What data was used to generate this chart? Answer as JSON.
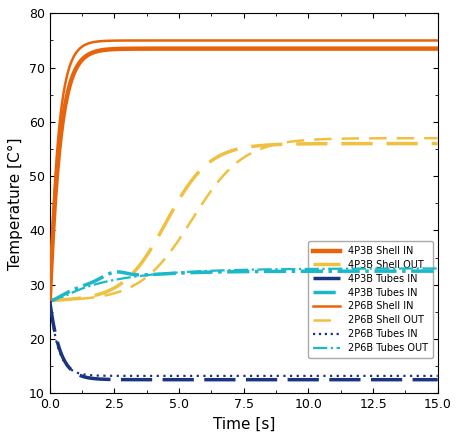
{
  "xlabel": "Time [s]",
  "ylabel": "Temperature [C°]",
  "xlim": [
    0,
    15
  ],
  "ylim": [
    10,
    80
  ],
  "xticks": [
    0,
    2.5,
    5,
    7.5,
    10,
    12.5,
    15
  ],
  "yticks": [
    10,
    20,
    30,
    40,
    50,
    60,
    70,
    80
  ],
  "colors": {
    "orange_dark": "#E8640A",
    "orange_light": "#F0C040",
    "blue_dark": "#1A3580",
    "cyan": "#1AB8C8"
  },
  "legend_labels": [
    "4P3B Shell IN",
    "4P3B Shell OUT",
    "4P3B Tubes IN",
    "4P3B Tubes IN",
    "2P6B Shell IN",
    "2P6B Shell OUT",
    "2P6B Tubes IN",
    "2P6B Tubes OUT"
  ]
}
